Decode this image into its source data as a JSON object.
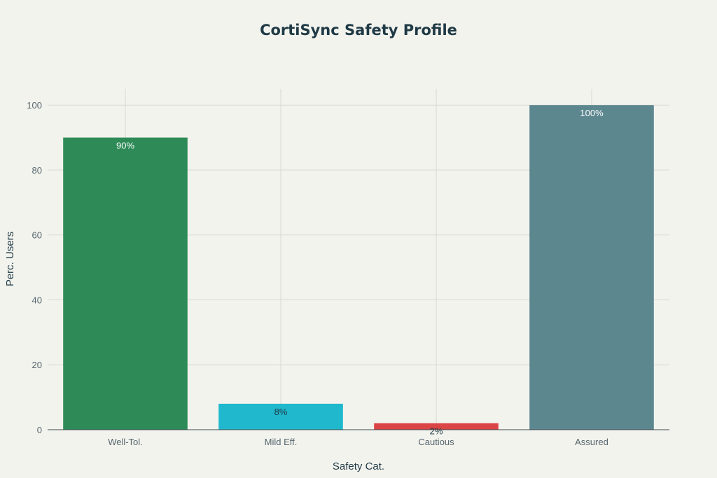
{
  "chart_data": {
    "type": "bar",
    "title": "CortiSync Safety Profile",
    "xlabel": "Safety Cat.",
    "ylabel": "Perc. Users",
    "categories": [
      "Well-Tol.",
      "Mild Eff.",
      "Cautious",
      "Assured"
    ],
    "values": [
      90,
      8,
      2,
      100
    ],
    "data_labels": [
      "90%",
      "8%",
      "2%",
      "100%"
    ],
    "colors": [
      "#2e8b57",
      "#1fb8cd",
      "#db4545",
      "#5d878f"
    ],
    "label_colors": [
      "#ffffff",
      "#1f3a45",
      "#1f3a45",
      "#ffffff"
    ],
    "ylim": [
      0,
      105
    ],
    "yticks": [
      0,
      20,
      40,
      60,
      80,
      100
    ],
    "grid": true,
    "legend": "none"
  }
}
